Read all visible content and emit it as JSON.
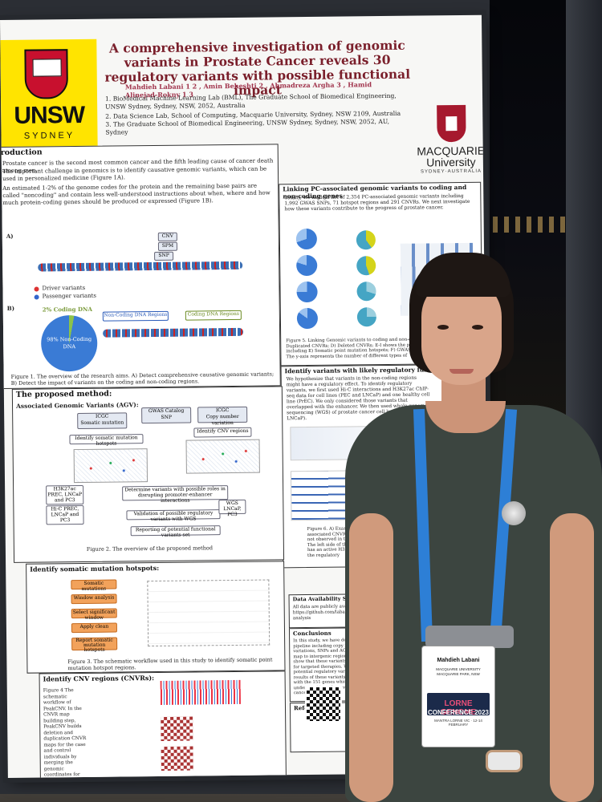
{
  "poster": {
    "logo_left": {
      "name": "UNSW",
      "sub": "SYDNEY"
    },
    "logo_right": {
      "name": "MACQUARIE",
      "name2": "University",
      "sub": "SYDNEY·AUSTRALIA"
    },
    "title": "A comprehensive investigation of genomic variants in Prostate Cancer reveals 30 regulatory variants with possible functional impact",
    "authors": "Mahdieh Labani 1 2 , Amin Beheshti 2 , Ahmadreza Argha 3 , Hamid Alinejad-Rokny 1 3",
    "affiliations": [
      "1.   BioMedical Machine Learning Lab (BML), The Graduate School of Biomedical Engineering, UNSW Sydney, Sydney, NSW, 2052, Australia",
      "2.   Data Science Lab, School of Computing, Macquarie University, Sydney, NSW 2109, Australia",
      "3.   The Graduate School of Biomedical Engineering, UNSW Sydney, Sydney, NSW, 2052, AU, Sydney"
    ],
    "intro": {
      "heading": "roduction",
      "text1": "Prostate cancer is the second most common cancer and the fifth leading cause of cancer death among men.",
      "text2": "The important challenge in genomics is to identify causative genomic variants, which can be used in personalized medicine (Figure 1A).",
      "text3": "An estimated 1-2% of the genome codes for the protein and the remaining base pairs are called \"noncoding\" and contain less well-understood instructions about when, where and how much protein-coding genes should be produced or expressed (Figure 1B).",
      "panel_a": "A)",
      "panel_b": "B)",
      "cnv": "CNV",
      "spm": "SPM",
      "snp": "SNP",
      "legend_driver": "Driver variants",
      "legend_passenger": "Passenger variants",
      "pie_coding": "2% Coding DNA",
      "pie_noncoding": "98% Non-Coding DNA",
      "noncoding_regions": "Non-Coding DNA Regions",
      "coding_regions": "Coding DNA Regions",
      "caption": "Figure 1. The overview of the research aims. A) Detect comprehensive causative genomic variants; B) Detect the impact of variants on the coding and non-coding regions."
    },
    "linking": {
      "heading": "Linking PC-associated genomic variants to coding and non-coding genes",
      "text": "Totally, we made a list of 2,354 PC-associated genomic variants including 1,992 GWAS SNPs, 71 hotspot regions and 291 CNVRs. We next investigate how these variants contribute to the progress of prostate cancer.",
      "caption": "Figure 5. Linking Genomic variants to coding and non-coding genes. SNPs; C) Duplicated CNVRs; D) Deleted CNVRs; E-I shows the percentage of variants including E) Somatic point mutation hotspots; F) GWAS SNPs into noncoding RNA. The y-axis represents the number of different types of"
    },
    "regulatory": {
      "heading": "Identify variants with likely regulatory function",
      "text": "We hypothesize that variants in the non-coding regions might have a regulatory effect. To identify regulatory variants, we first used Hi-C interactions and H3K27ac ChIP-seq data for cell lines (PEC and LNCaP) and one healthy cell line (PrEC). We only considered those variants that overlapped with the enhancer. We then used whole genome sequencing (WGS) of prostate cancer cell lines (PC3 and LNCaP)."
    },
    "method": {
      "heading": "The proposed method:",
      "sub": "Associated Genomic Variants (AGV):",
      "icgc": "ICGC",
      "icgc_sub": "Somatic mutation",
      "gwas": "GWAS Catalog",
      "gwas_sub": "SNP",
      "icgc2": "ICGC",
      "icgc2_sub": "Copy number variation",
      "hotspots": "Identify somatic mutation hotspots",
      "cnv_regions": "Identify CNV regions",
      "determine": "Determine variants with possible roles in disrupting promoter-enhancer interactions",
      "validation": "Validation of possible regulatory variants with WGS",
      "reporting": "Reporting of potential functional variants set",
      "h3k27": "H3K27ac PREC, LNCaP and PC3",
      "hic": "Hi-C PREC, LNCaP and PC3",
      "wgs": "WGS LNCaP, PC3",
      "caption": "Figure 2. The overview of the proposed method"
    },
    "somatic": {
      "heading": "Identify somatic mutation hotspots:",
      "steps": [
        "Somatic mutations",
        "Window analysis",
        "Select significant window",
        "Apply clean",
        "Report somatic mutation hotspots"
      ],
      "caption": "Figure 3. The schematic workflow used in this study to identify somatic point mutation hotspot regions."
    },
    "cnv": {
      "heading": "Identify CNV regions (CNVRs):",
      "text": "Figure 4 The schematic workflow of PeakCNV. In the CNVR map building step, PeakCNV builds deletion and duplication CNVR maps for the case and control individuals by merging the genomic coordinates for deletion and duplication CNVs, respectively. In the clustering step, finds a group of CNVRs which have a significant association that the difference of the two features"
    },
    "fig6": {
      "caption": "Figure 6. A) Example of a regulatory variant. associated CNVRs identified in this study. EPI was not observed in the healthy cell line. Interestingly. The left side of this interaction enhancer region that has an active H3K27ac in healthy cells B) Example of the regulatory"
    },
    "availability": {
      "heading": "Data Availability Statement",
      "text": "All data are publicly available. https://github.com/labanimahdieh/Prostate-analysis"
    },
    "conclusions": {
      "heading": "Conclusions",
      "text": "In this study, we have developed a new pipeline including copy number variations, SNPs and AGV variants that map to intergenic regions. Our results show that these variants can be used for targeted therapies. We identified 30 potential regulatory variants in PC. The results of these variants associated with the 151 genes which will help to understand how these variants affect cancers."
    },
    "references": {
      "heading": "References"
    }
  },
  "badge": {
    "name": "Mahdieh Labani",
    "org_line1": "MACQUARIE UNIVERSITY",
    "org_line2": "MACQUARIE PARK, NSW",
    "conf_pre": "LORNE GENOME",
    "conf_year": "CONFERENCE 2023",
    "conf_date": "MANTRA LORNE VIC · 12-14 FEBRUARY"
  },
  "colors": {
    "unsw_yellow": "#ffe400",
    "title_red": "#7a1f2b",
    "macquarie_red": "#a6192e",
    "lanyard_blue": "#2d7fd6",
    "dress": "#3c4540"
  }
}
